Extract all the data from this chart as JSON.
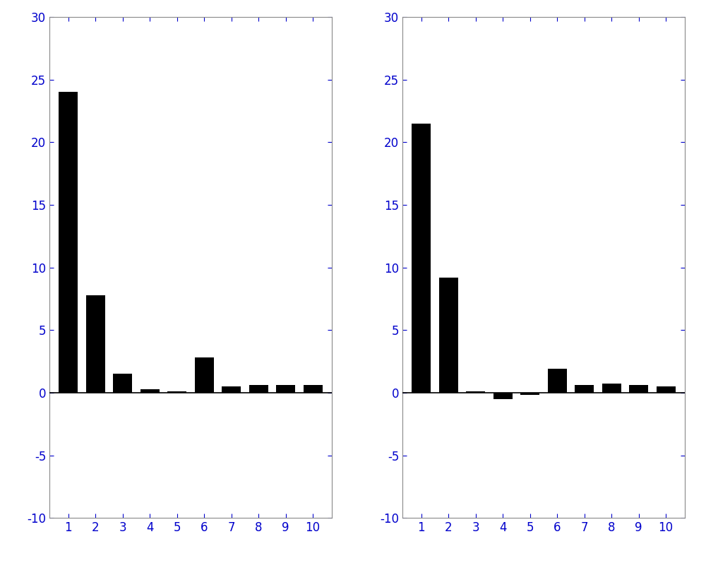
{
  "left_values": [
    24.0,
    7.8,
    1.5,
    0.3,
    0.1,
    2.8,
    0.5,
    0.6,
    0.6,
    0.6
  ],
  "right_values": [
    21.5,
    9.2,
    0.1,
    -0.5,
    -0.2,
    1.9,
    0.6,
    0.7,
    0.6,
    0.5
  ],
  "categories": [
    1,
    2,
    3,
    4,
    5,
    6,
    7,
    8,
    9,
    10
  ],
  "ylim": [
    -10,
    30
  ],
  "yticks": [
    -10,
    -5,
    0,
    5,
    10,
    15,
    20,
    25,
    30
  ],
  "bar_color": "#000000",
  "bar_width": 0.7,
  "background_color": "#ffffff",
  "tick_label_color": "#0000cc",
  "tick_label_fontsize": 12,
  "spine_color": "#888888",
  "zero_line_color": "#000000"
}
